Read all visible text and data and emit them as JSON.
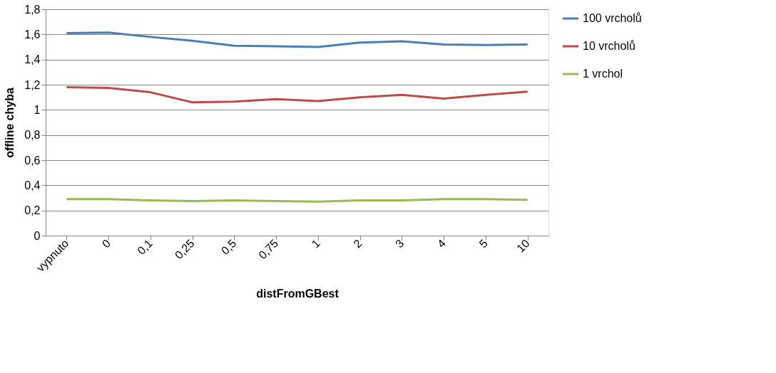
{
  "chart_data": {
    "type": "line",
    "xlabel": "distFromGBest",
    "ylabel": "offline chyba",
    "categories": [
      "vypnuto",
      "0",
      "0,1",
      "0,25",
      "0,5",
      "0,75",
      "1",
      "2",
      "3",
      "4",
      "5",
      "10"
    ],
    "series": [
      {
        "name": "100 vrcholů",
        "color": "#4a7ebb",
        "values": [
          1.61,
          1.615,
          1.58,
          1.55,
          1.51,
          1.505,
          1.5,
          1.535,
          1.545,
          1.52,
          1.515,
          1.52
        ]
      },
      {
        "name": "10 vrcholů",
        "color": "#be4b48",
        "values": [
          1.18,
          1.175,
          1.14,
          1.06,
          1.065,
          1.085,
          1.07,
          1.1,
          1.12,
          1.09,
          1.12,
          1.145
        ]
      },
      {
        "name": "1 vrchol",
        "color": "#98b954",
        "values": [
          0.29,
          0.29,
          0.28,
          0.275,
          0.28,
          0.275,
          0.27,
          0.28,
          0.28,
          0.29,
          0.29,
          0.285
        ]
      }
    ],
    "ylim": [
      0,
      1.8
    ],
    "yticks": [
      0,
      {
        "value": 0.2,
        "label": "0,2"
      },
      {
        "value": 0.4,
        "label": "0,4"
      },
      {
        "value": 0.6,
        "label": "0,6"
      },
      {
        "value": 0.8,
        "label": "0,8"
      },
      1,
      {
        "value": 1.2,
        "label": "1,2"
      },
      {
        "value": 1.4,
        "label": "1,4"
      },
      {
        "value": 1.6,
        "label": "1,6"
      },
      {
        "value": 1.8,
        "label": "1,8"
      }
    ],
    "grid": "y",
    "legend": "right",
    "marker": "none",
    "line_style": "solid"
  }
}
